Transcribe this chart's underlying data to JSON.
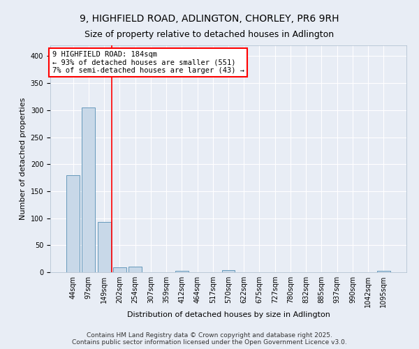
{
  "title": "9, HIGHFIELD ROAD, ADLINGTON, CHORLEY, PR6 9RH",
  "subtitle": "Size of property relative to detached houses in Adlington",
  "xlabel": "Distribution of detached houses by size in Adlington",
  "ylabel": "Number of detached properties",
  "categories": [
    "44sqm",
    "97sqm",
    "149sqm",
    "202sqm",
    "254sqm",
    "307sqm",
    "359sqm",
    "412sqm",
    "464sqm",
    "517sqm",
    "570sqm",
    "622sqm",
    "675sqm",
    "727sqm",
    "780sqm",
    "832sqm",
    "885sqm",
    "937sqm",
    "990sqm",
    "1042sqm",
    "1095sqm"
  ],
  "values": [
    180,
    305,
    93,
    9,
    10,
    0,
    0,
    3,
    0,
    0,
    4,
    0,
    0,
    0,
    0,
    0,
    0,
    0,
    0,
    0,
    3
  ],
  "bar_color": "#c8d8e8",
  "bar_edge_color": "#6699bb",
  "vline_x": 2.5,
  "vline_color": "red",
  "annotation_text": "9 HIGHFIELD ROAD: 184sqm\n← 93% of detached houses are smaller (551)\n7% of semi-detached houses are larger (43) →",
  "annotation_box_color": "white",
  "annotation_box_edge": "red",
  "ylim": [
    0,
    420
  ],
  "yticks": [
    0,
    50,
    100,
    150,
    200,
    250,
    300,
    350,
    400
  ],
  "footer_line1": "Contains HM Land Registry data © Crown copyright and database right 2025.",
  "footer_line2": "Contains public sector information licensed under the Open Government Licence v3.0.",
  "background_color": "#e8edf5",
  "plot_background": "#e8edf5",
  "grid_color": "white",
  "title_fontsize": 10,
  "subtitle_fontsize": 9,
  "axis_label_fontsize": 8,
  "tick_fontsize": 7,
  "footer_fontsize": 6.5
}
